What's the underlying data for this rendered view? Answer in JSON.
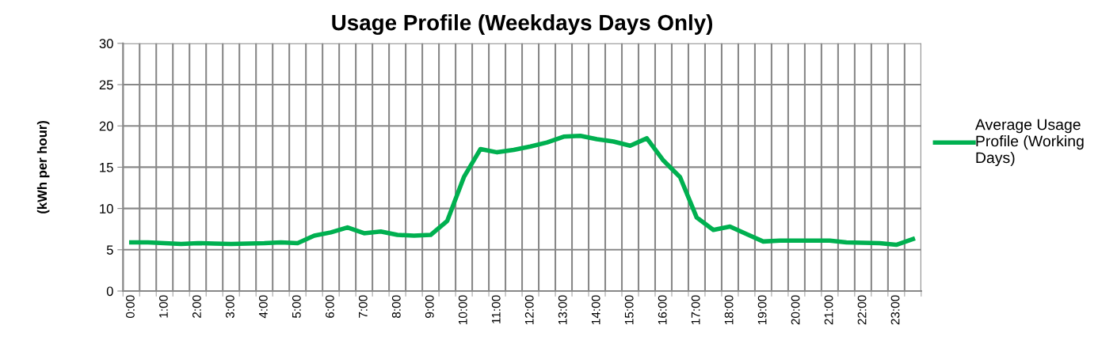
{
  "chart_data": {
    "type": "line",
    "title": "Usage Profile (Weekdays Days Only)",
    "ylabel": "(kWh per hour)",
    "categories": [
      "0:00",
      null,
      "1:00",
      null,
      "2:00",
      null,
      "3:00",
      null,
      "4:00",
      null,
      "5:00",
      null,
      "6:00",
      null,
      "7:00",
      null,
      "8:00",
      null,
      "9:00",
      null,
      "10:00",
      null,
      "11:00",
      null,
      "12:00",
      null,
      "13:00",
      null,
      "14:00",
      null,
      "15:00",
      null,
      "16:00",
      null,
      "17:00",
      null,
      "18:00",
      null,
      "19:00",
      null,
      "20:00",
      null,
      "21:00",
      null,
      "22:00",
      null,
      "23:00",
      null
    ],
    "series": [
      {
        "name": "Average Usage Profile (Working Days)",
        "color": "#00b050",
        "values": [
          5.9,
          5.9,
          5.8,
          5.7,
          5.8,
          5.75,
          5.7,
          5.75,
          5.8,
          5.9,
          5.8,
          6.7,
          7.1,
          7.7,
          7.0,
          7.2,
          6.8,
          6.7,
          6.8,
          8.5,
          13.8,
          17.2,
          16.8,
          17.1,
          17.5,
          18.0,
          18.7,
          18.8,
          18.4,
          18.1,
          17.6,
          18.5,
          15.8,
          13.8,
          8.9,
          7.4,
          7.8,
          6.9,
          6.0,
          6.1,
          6.1,
          6.1,
          6.1,
          5.9,
          5.85,
          5.8,
          5.6,
          6.3
        ]
      }
    ],
    "ylim": [
      0,
      30
    ],
    "yticks": [
      0,
      5,
      10,
      15,
      20,
      25,
      30
    ],
    "grid": true,
    "legend": "right",
    "marker": "none",
    "line_style": "solid"
  }
}
